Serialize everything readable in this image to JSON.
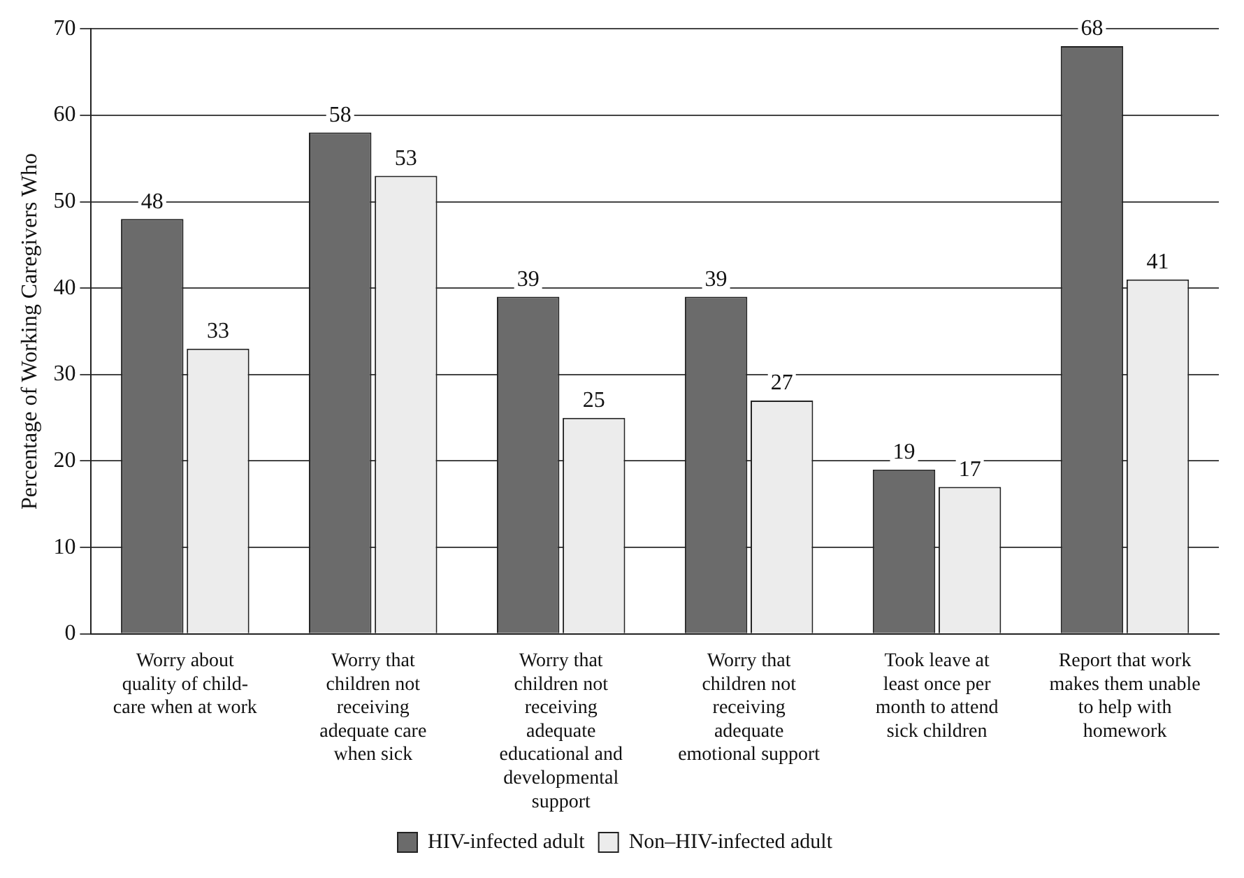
{
  "chart_data": {
    "type": "bar",
    "ylabel": "Percentage of Working Caregivers Who",
    "categories": [
      "Worry about quality of child-care when at work",
      "Worry that children not receiving adequate care when sick",
      "Worry that children not receiving adequate educational and developmental support",
      "Worry that children not receiving adequate emotional support",
      "Took leave at least once per month to attend sick children",
      "Report that work makes them unable to help with homework"
    ],
    "series": [
      {
        "name": "HIV-infected adult",
        "color": "#6b6b6b",
        "values": [
          48,
          58,
          39,
          39,
          19,
          68
        ]
      },
      {
        "name": "Non–HIV-infected adult",
        "color": "#ececec",
        "values": [
          33,
          53,
          25,
          27,
          17,
          41
        ]
      }
    ],
    "ylim": [
      0,
      70
    ],
    "yticks": [
      0,
      10,
      20,
      30,
      40,
      50,
      60,
      70
    ],
    "grid": "y",
    "legend": "bottom",
    "data_labels": true
  }
}
